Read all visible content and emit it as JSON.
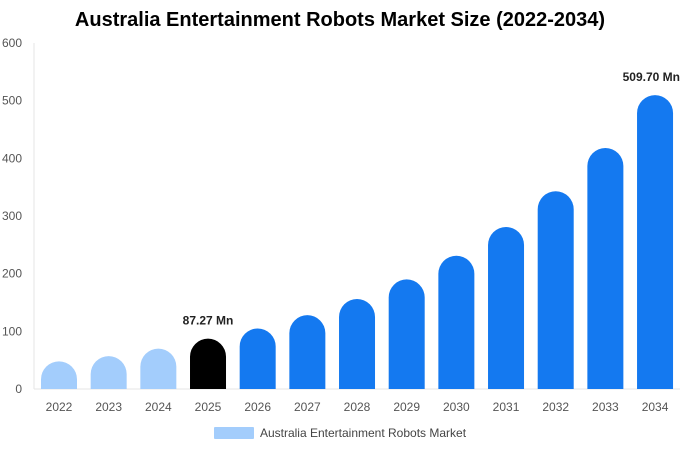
{
  "chart_data": {
    "type": "bar",
    "title": "Australia Entertainment Robots Market Size (2022-2034)",
    "xlabel": "",
    "ylabel": "",
    "categories": [
      "2022",
      "2023",
      "2024",
      "2025",
      "2026",
      "2027",
      "2028",
      "2029",
      "2030",
      "2031",
      "2032",
      "2033",
      "2034"
    ],
    "series": [
      {
        "name": "Australia Entertainment Robots Market",
        "values": [
          48,
          57,
          70,
          87.27,
          105,
          128,
          156,
          190,
          231,
          281,
          343,
          418,
          509.7
        ]
      }
    ],
    "ylim": [
      0,
      600
    ],
    "yticks": [
      0,
      100,
      200,
      300,
      400,
      500,
      600
    ],
    "grid": false,
    "legend_position": "bottom-center",
    "annotations": [
      {
        "category": "2025",
        "text": "87.27 Mn"
      },
      {
        "category": "2034",
        "text": "509.70 Mn"
      }
    ],
    "bar_colors": {
      "historical": "#a3cdfc",
      "base_year": "#000000",
      "forecast": "#1479f0"
    },
    "color_groups": [
      "historical",
      "historical",
      "historical",
      "base_year",
      "forecast",
      "forecast",
      "forecast",
      "forecast",
      "forecast",
      "forecast",
      "forecast",
      "forecast",
      "forecast"
    ],
    "legend_color": "#a3cdfc"
  }
}
